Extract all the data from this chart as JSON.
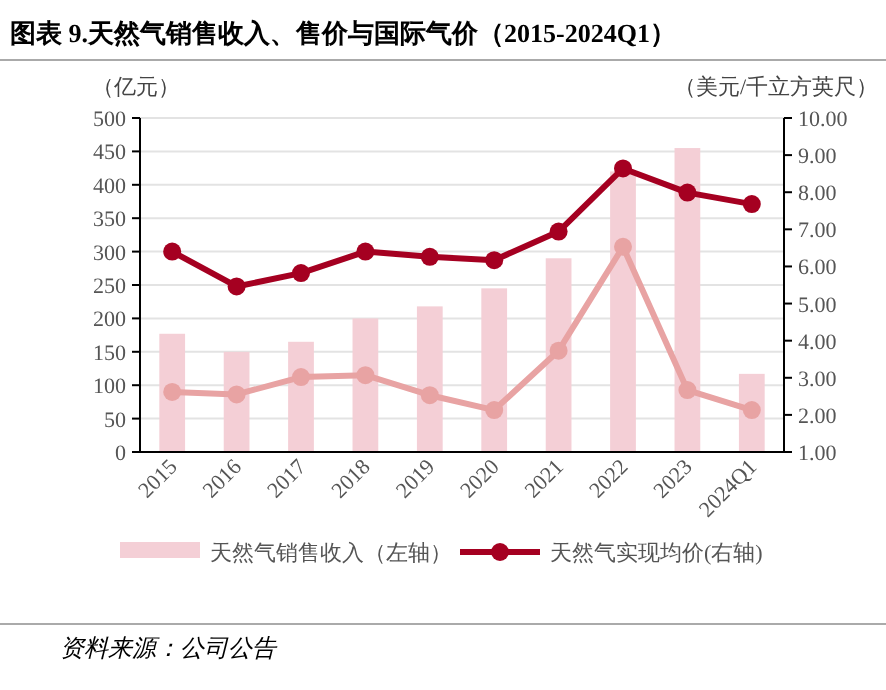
{
  "chart_data": {
    "type": "bar",
    "title": "图表 9.天然气销售收入、售价与国际气价（2015-2024Q1）",
    "ylabel": "（亿元）",
    "y2label": "（美元/千立方英尺）",
    "categories": [
      "2015",
      "2016",
      "2017",
      "2018",
      "2019",
      "2020",
      "2021",
      "2022",
      "2023",
      "2024Q1"
    ],
    "series": [
      {
        "name": "天然气销售收入（左轴）",
        "color": "#f4cfd6",
        "values": [
          177,
          150,
          165,
          200,
          218,
          245,
          290,
          420,
          455,
          117
        ]
      },
      {
        "name": "天然气实现均价(右轴)",
        "type": "line",
        "axis": "y2",
        "color": "#a50021",
        "values": [
          6.4,
          5.46,
          5.82,
          6.4,
          6.26,
          6.17,
          6.94,
          8.64,
          7.99,
          7.68
        ]
      },
      {
        "type": "line",
        "axis": "y2",
        "color": "#e8a3a3",
        "values": [
          2.62,
          2.55,
          3.02,
          3.07,
          2.53,
          2.13,
          3.73,
          6.53,
          2.67,
          2.13
        ]
      }
    ],
    "ylim": [
      0,
      500
    ],
    "yticks": [
      0,
      50,
      100,
      150,
      200,
      250,
      300,
      350,
      400,
      450,
      500
    ],
    "y2lim": [
      1,
      10
    ],
    "y2ticks": [
      {
        "value": 1,
        "label": "1.00"
      },
      {
        "value": 2,
        "label": "2.00"
      },
      {
        "value": 3,
        "label": "3.00"
      },
      {
        "value": 4,
        "label": "4.00"
      },
      {
        "value": 5,
        "label": "5.00"
      },
      {
        "value": 6,
        "label": "6.00"
      },
      {
        "value": 7,
        "label": "7.00"
      },
      {
        "value": 8,
        "label": "8.00"
      },
      {
        "value": 9,
        "label": "9.00"
      },
      {
        "value": 10,
        "label": "10.00"
      }
    ],
    "grid": "y",
    "legend": "bottom",
    "marker": "circle",
    "annotations": [
      "资料来源：公司公告"
    ]
  }
}
